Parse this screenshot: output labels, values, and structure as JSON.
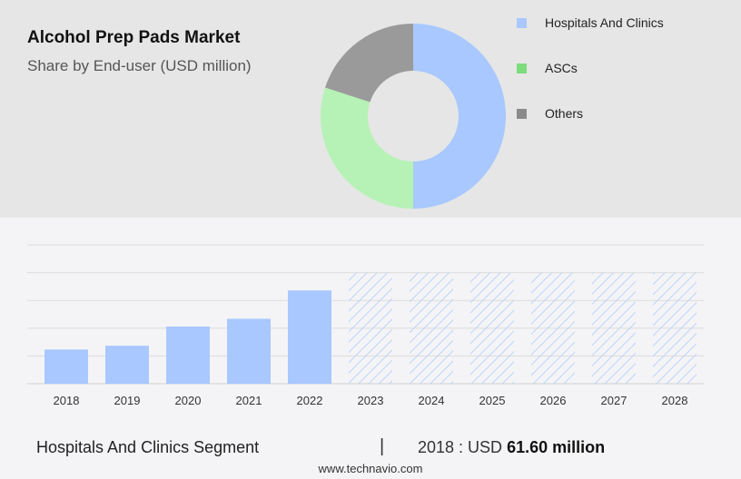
{
  "chart_data": [
    {
      "type": "pie",
      "title": "Alcohol Prep Pads Market",
      "subtitle": "Share by End-user (USD million)",
      "categories": [
        "Hospitals And Clinics",
        "ASCs",
        "Others"
      ],
      "values": [
        50,
        30,
        20
      ],
      "colors": [
        "#a8c8ff",
        "#b6f2b6",
        "#9a9a9a"
      ],
      "legend_colors": [
        "#a8c8ff",
        "#7ddc7d",
        "#8a8a8a"
      ],
      "legend": "right"
    },
    {
      "type": "bar",
      "categories": [
        "2018",
        "2019",
        "2020",
        "2021",
        "2022",
        "2023",
        "2024",
        "2025",
        "2026",
        "2027",
        "2028"
      ],
      "values": [
        61.6,
        68.5,
        103.0,
        117.0,
        168.0,
        200.0,
        200.0,
        200.0,
        200.0,
        200.0,
        200.0
      ],
      "forecast_from": "2023",
      "ylim": [
        0,
        250
      ],
      "grid": true,
      "bar_color": "#a8c8ff",
      "forecast_color": "#bcd4fb"
    }
  ],
  "footer": {
    "segment": "Hospitals And Clinics Segment",
    "separator": "|",
    "value_prefix": "2018 : USD",
    "value_bold": "61.60 million"
  },
  "source": "www.technavio.com"
}
